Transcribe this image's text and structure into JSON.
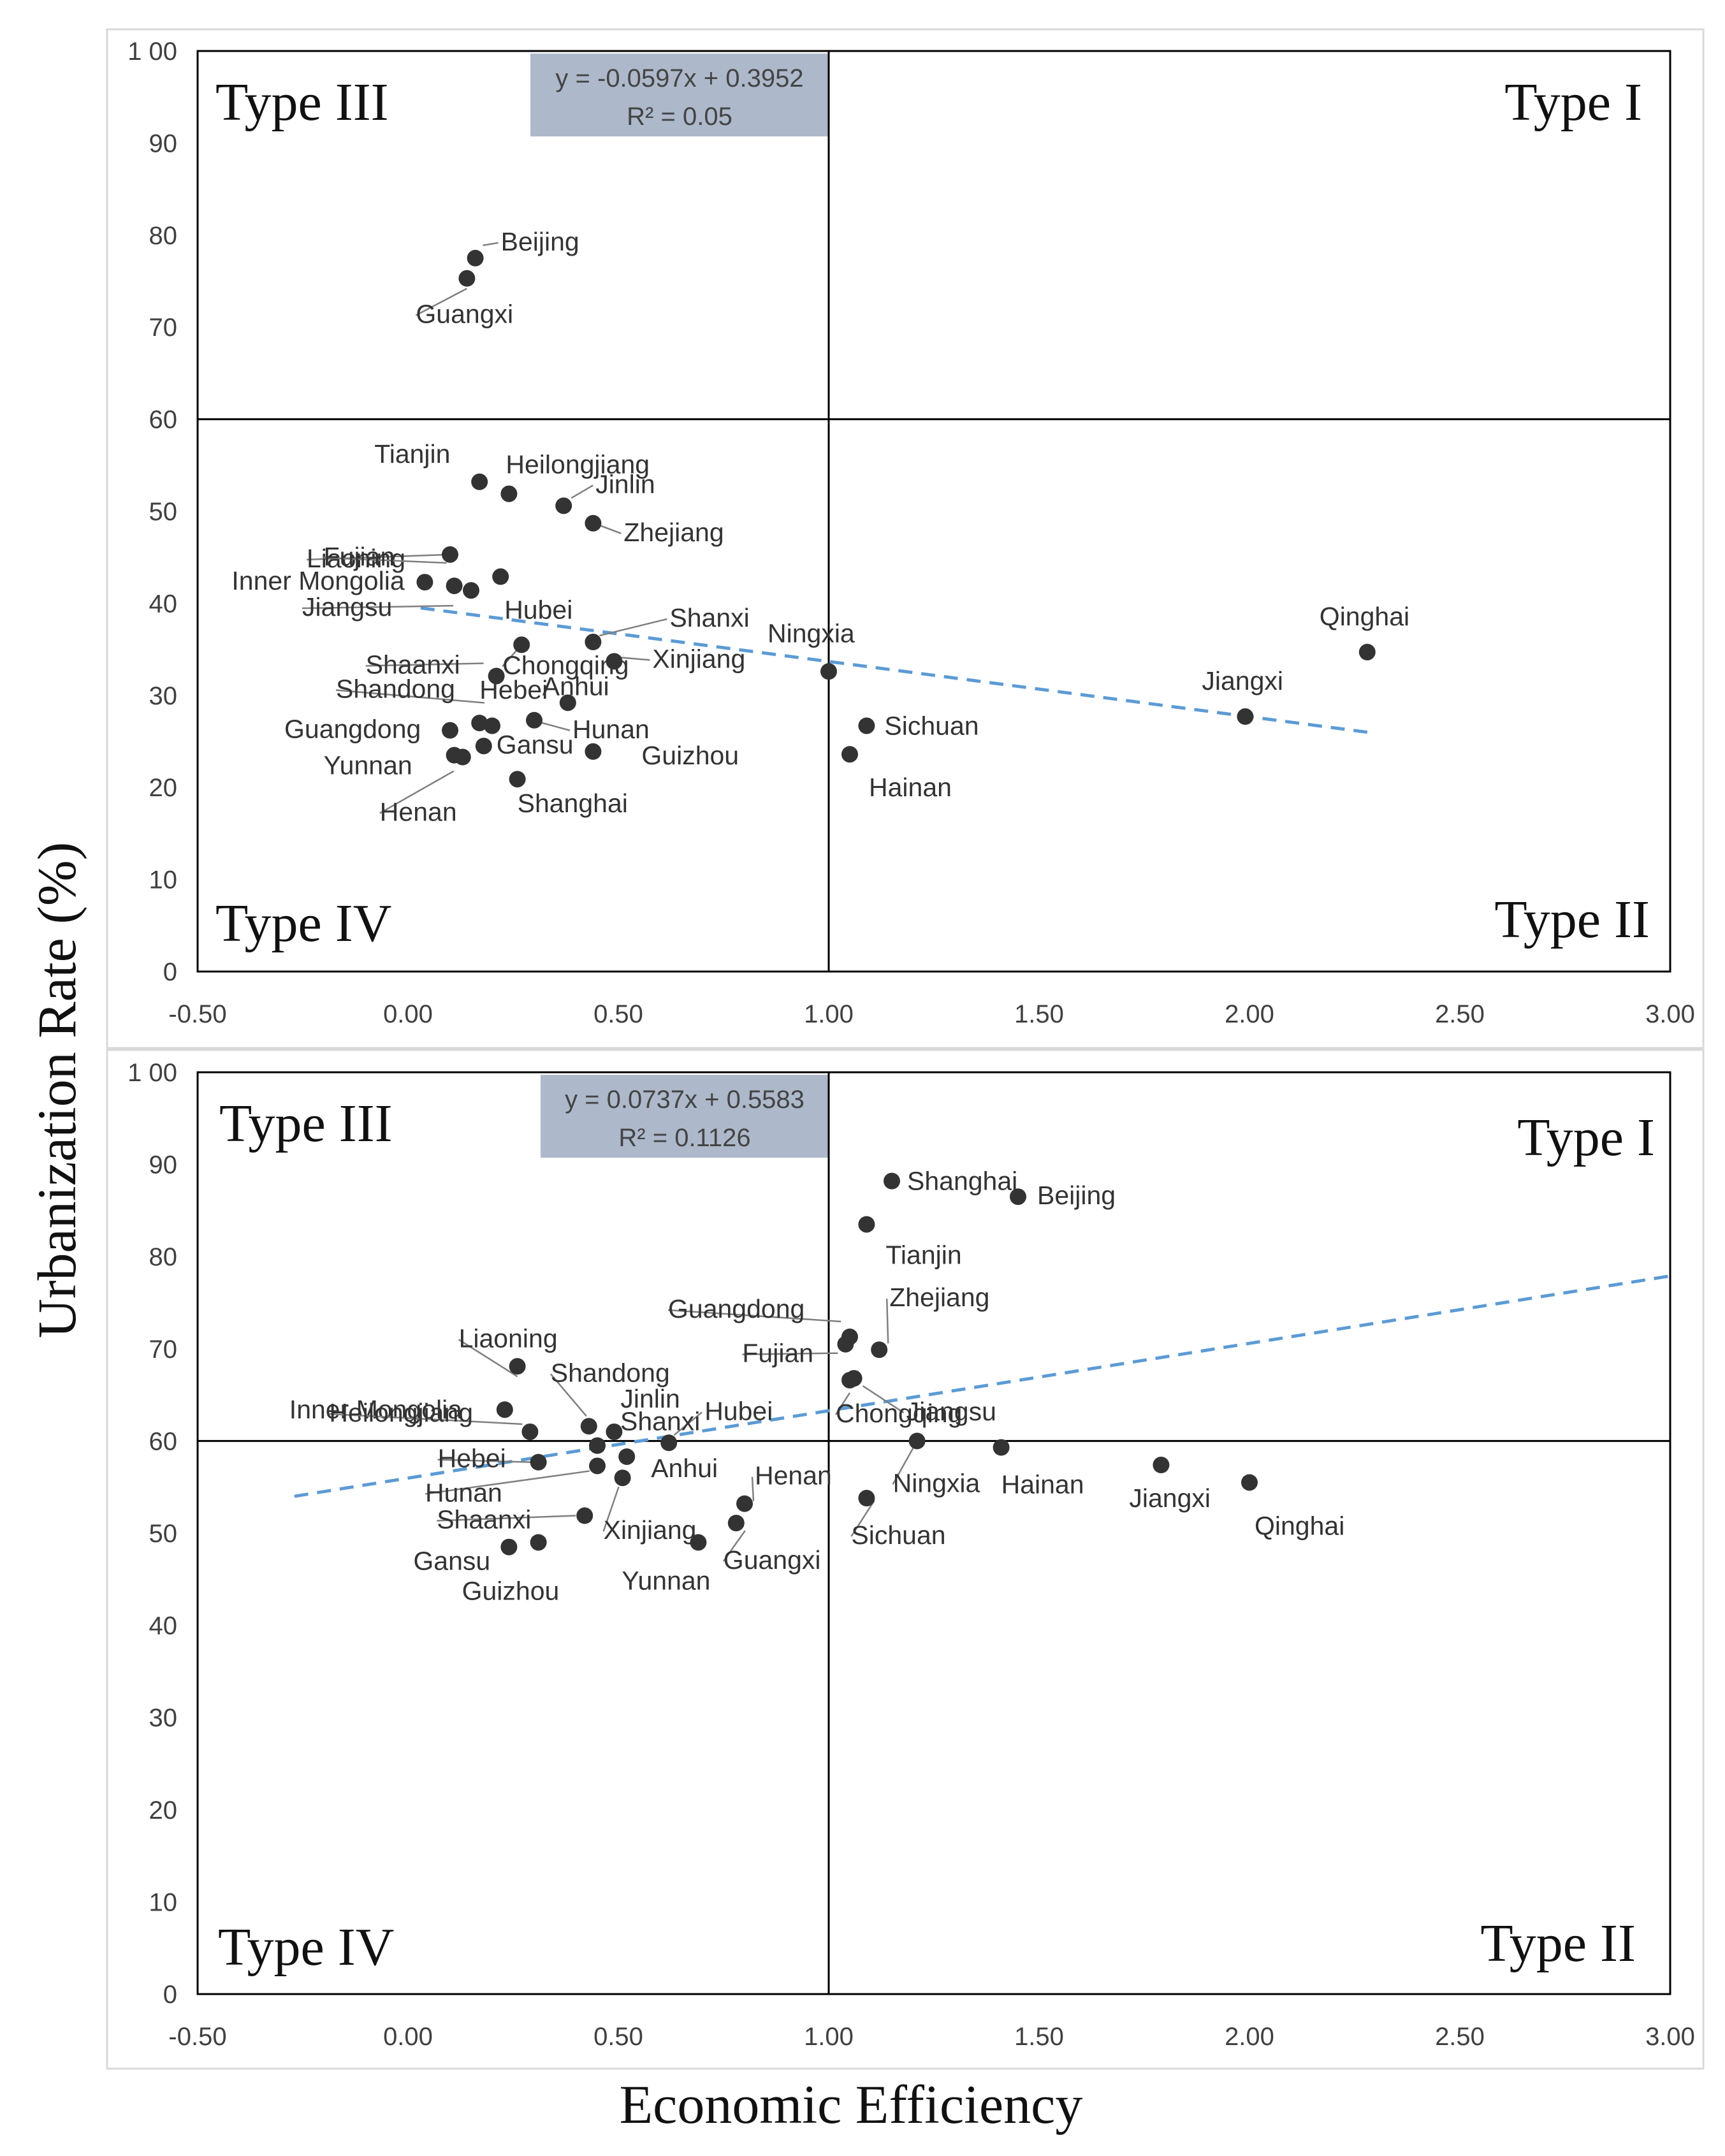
{
  "axes": {
    "xlabel": "Economic Efficiency",
    "ylabel": "Urbanization Rate (%)",
    "x_ticks": [
      "-0.50",
      "0.00",
      "0.50",
      "1.00",
      "1.50",
      "2.00",
      "2.50",
      "3.00"
    ],
    "y_ticks": [
      "0",
      "10",
      "20",
      "30",
      "40",
      "50",
      "60",
      "70",
      "80",
      "90",
      "1 00"
    ]
  },
  "colors": {
    "point": "#333333",
    "trend": "#5b9bd5",
    "quad_line": "#000000",
    "eq_box": "#adb9ca",
    "frame": "#000000",
    "leader": "#7f7f7f"
  },
  "chart_data": [
    {
      "type": "scatter",
      "title": "",
      "xlabel": "Economic Efficiency",
      "ylabel": "Urbanization Rate (%)",
      "xlim": [
        -0.5,
        3.0
      ],
      "ylim": [
        0,
        100
      ],
      "divider_x": 1.0,
      "divider_y": 60,
      "quadrant_labels": {
        "top_left": "Type III",
        "top_right": "Type I",
        "bottom_left": "Type IV",
        "bottom_right": "Type II"
      },
      "equation": "y = -0.0597x + 0.3952",
      "r_squared": "R² = 0.05",
      "trendline": {
        "x": [
          0.03,
          2.28
        ],
        "y": [
          39.5,
          26.0
        ]
      },
      "points": [
        {
          "name": "Beijing",
          "x": 0.16,
          "y": 77.5
        },
        {
          "name": "Guangxi",
          "x": 0.14,
          "y": 75.3
        },
        {
          "name": "Tianjin",
          "x": 0.17,
          "y": 53.2
        },
        {
          "name": "Heilongjiang",
          "x": 0.24,
          "y": 51.9
        },
        {
          "name": "Jinlin",
          "x": 0.37,
          "y": 50.6
        },
        {
          "name": "Zhejiang",
          "x": 0.44,
          "y": 48.7
        },
        {
          "name": "Liaoning",
          "x": 0.1,
          "y": 45.3
        },
        {
          "name": "Fujian",
          "x": 0.11,
          "y": 41.9
        },
        {
          "name": "Hubei",
          "x": 0.22,
          "y": 42.9
        },
        {
          "name": "Inner Mongolia",
          "x": 0.04,
          "y": 42.3
        },
        {
          "name": "Jiangsu",
          "x": 0.15,
          "y": 41.4
        },
        {
          "name": "Chongqing",
          "x": 0.27,
          "y": 35.5
        },
        {
          "name": "Shanxi",
          "x": 0.44,
          "y": 35.8
        },
        {
          "name": "Xinjiang",
          "x": 0.49,
          "y": 33.7
        },
        {
          "name": "Shaanxi",
          "x": 0.21,
          "y": 32.1
        },
        {
          "name": "Ningxia",
          "x": 1.0,
          "y": 32.6
        },
        {
          "name": "Anhui",
          "x": 0.38,
          "y": 29.2
        },
        {
          "name": "Hebei",
          "x": 0.17,
          "y": 27.0
        },
        {
          "name": "Hunan",
          "x": 0.3,
          "y": 27.3
        },
        {
          "name": "Shandong",
          "x": 0.2,
          "y": 26.7
        },
        {
          "name": "Guangdong",
          "x": 0.1,
          "y": 26.2
        },
        {
          "name": "Gansu",
          "x": 0.18,
          "y": 24.5
        },
        {
          "name": "Guizhou",
          "x": 0.44,
          "y": 23.9
        },
        {
          "name": "Yunnan",
          "x": 0.11,
          "y": 23.5
        },
        {
          "name": "Henan",
          "x": 0.13,
          "y": 23.3
        },
        {
          "name": "Shanghai",
          "x": 0.26,
          "y": 20.9
        },
        {
          "name": "Sichuan",
          "x": 1.09,
          "y": 26.7
        },
        {
          "name": "Hainan",
          "x": 1.05,
          "y": 23.6
        },
        {
          "name": "Jiangxi",
          "x": 1.99,
          "y": 27.7
        },
        {
          "name": "Qinghai",
          "x": 2.28,
          "y": 34.7
        }
      ]
    },
    {
      "type": "scatter",
      "title": "",
      "xlabel": "Economic Efficiency",
      "ylabel": "Urbanization Rate (%)",
      "xlim": [
        -0.5,
        3.0
      ],
      "ylim": [
        0,
        100
      ],
      "divider_x": 1.0,
      "divider_y": 60,
      "quadrant_labels": {
        "top_left": "Type III",
        "top_right": "Type I",
        "bottom_left": "Type IV",
        "bottom_right": "Type II"
      },
      "equation": "y = 0.0737x + 0.5583",
      "r_squared": "R² = 0.1126",
      "trendline": {
        "x": [
          -0.27,
          3.0
        ],
        "y": [
          54.0,
          77.9
        ]
      },
      "points": [
        {
          "name": "Shanghai",
          "x": 1.15,
          "y": 88.2
        },
        {
          "name": "Beijing",
          "x": 1.45,
          "y": 86.5
        },
        {
          "name": "Tianjin",
          "x": 1.09,
          "y": 83.5
        },
        {
          "name": "Guangdong",
          "x": 1.05,
          "y": 71.3
        },
        {
          "name": "Zhejiang",
          "x": 1.12,
          "y": 69.9
        },
        {
          "name": "Fujian",
          "x": 1.04,
          "y": 70.5
        },
        {
          "name": "Jiangsu",
          "x": 1.06,
          "y": 66.8
        },
        {
          "name": "Chongqing",
          "x": 1.05,
          "y": 66.6
        },
        {
          "name": "Ningxia",
          "x": 1.21,
          "y": 60.0
        },
        {
          "name": "Hainan",
          "x": 1.41,
          "y": 59.3
        },
        {
          "name": "Jiangxi",
          "x": 1.79,
          "y": 57.4
        },
        {
          "name": "Qinghai",
          "x": 2.0,
          "y": 55.5
        },
        {
          "name": "Sichuan",
          "x": 1.09,
          "y": 53.8
        },
        {
          "name": "Liaoning",
          "x": 0.26,
          "y": 68.1
        },
        {
          "name": "Inner Mongolia",
          "x": 0.23,
          "y": 63.4
        },
        {
          "name": "Heilongjiang",
          "x": 0.29,
          "y": 61.0
        },
        {
          "name": "Shandong",
          "x": 0.43,
          "y": 61.6
        },
        {
          "name": "Jinlin",
          "x": 0.49,
          "y": 61.0
        },
        {
          "name": "Hubei",
          "x": 0.62,
          "y": 59.8
        },
        {
          "name": "Shanxi",
          "x": 0.45,
          "y": 59.5
        },
        {
          "name": "Hebei",
          "x": 0.31,
          "y": 57.7
        },
        {
          "name": "Hunan",
          "x": 0.45,
          "y": 57.3
        },
        {
          "name": "Anhui",
          "x": 0.52,
          "y": 58.3
        },
        {
          "name": "Shaanxi",
          "x": 0.42,
          "y": 51.9
        },
        {
          "name": "Xinjiang",
          "x": 0.51,
          "y": 56.0
        },
        {
          "name": "Henan",
          "x": 0.8,
          "y": 53.2
        },
        {
          "name": "Guangxi",
          "x": 0.78,
          "y": 51.1
        },
        {
          "name": "Yunnan",
          "x": 0.69,
          "y": 49.0
        },
        {
          "name": "Gansu",
          "x": 0.24,
          "y": 48.5
        },
        {
          "name": "Guizhou",
          "x": 0.31,
          "y": 49.0
        }
      ]
    }
  ]
}
